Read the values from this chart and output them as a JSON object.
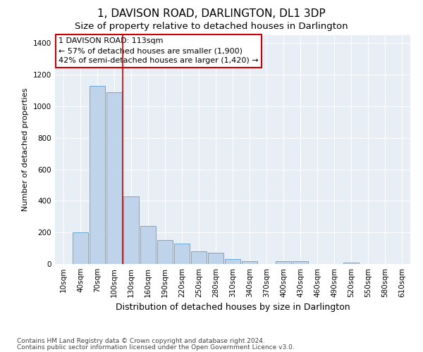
{
  "title": "1, DAVISON ROAD, DARLINGTON, DL1 3DP",
  "subtitle": "Size of property relative to detached houses in Darlington",
  "xlabel": "Distribution of detached houses by size in Darlington",
  "ylabel": "Number of detached properties",
  "categories": [
    "10sqm",
    "40sqm",
    "70sqm",
    "100sqm",
    "130sqm",
    "160sqm",
    "190sqm",
    "220sqm",
    "250sqm",
    "280sqm",
    "310sqm",
    "340sqm",
    "370sqm",
    "400sqm",
    "430sqm",
    "460sqm",
    "490sqm",
    "520sqm",
    "550sqm",
    "580sqm",
    "610sqm"
  ],
  "values": [
    0,
    200,
    1130,
    1090,
    430,
    240,
    150,
    130,
    80,
    70,
    30,
    20,
    0,
    20,
    20,
    0,
    0,
    10,
    0,
    0,
    0
  ],
  "bar_color": "#bfd4ea",
  "bar_edge_color": "#6aaad4",
  "bar_linewidth": 0.7,
  "background_color": "#e8eef6",
  "grid_color": "#ffffff",
  "red_line_x": 3.5,
  "red_line_color": "#cc0000",
  "annotation_text": "1 DAVISON ROAD: 113sqm\n← 57% of detached houses are smaller (1,900)\n42% of semi-detached houses are larger (1,420) →",
  "annotation_box_color": "#cc0000",
  "ylim": [
    0,
    1450
  ],
  "yticks": [
    0,
    200,
    400,
    600,
    800,
    1000,
    1200,
    1400
  ],
  "footer1": "Contains HM Land Registry data © Crown copyright and database right 2024.",
  "footer2": "Contains public sector information licensed under the Open Government Licence v3.0.",
  "title_fontsize": 11,
  "subtitle_fontsize": 9.5,
  "xlabel_fontsize": 9,
  "ylabel_fontsize": 8,
  "tick_fontsize": 7.5,
  "footer_fontsize": 6.5,
  "annotation_fontsize": 8
}
